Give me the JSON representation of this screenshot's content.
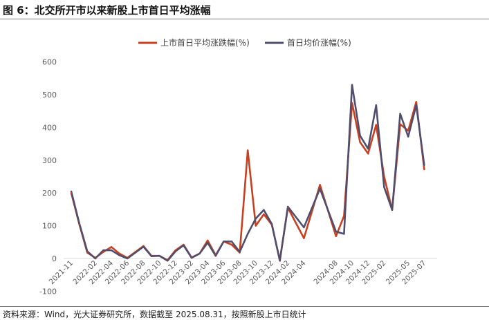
{
  "figure": {
    "title": "图 6：北交所开市以来新股上市首日平均涨幅",
    "source": "资料来源：Wind，光大证券研究所，数据截至 2025.08.31，按照新股上市日统计"
  },
  "colors": {
    "series1": "#c8401f",
    "series2": "#4f4e6e",
    "axis": "#d9d9d9"
  },
  "chart_data": {
    "type": "line",
    "title": "",
    "xlabel": "",
    "ylabel": "",
    "ylim": [
      -100,
      600
    ],
    "yticks": [
      -100,
      0,
      100,
      200,
      300,
      400,
      500,
      600
    ],
    "xticks": [
      "2021-11",
      "2022-02",
      "2022-04",
      "2022-06",
      "2022-08",
      "2022-10",
      "2022-12",
      "2023-02",
      "2023-04",
      "2023-06",
      "2023-08",
      "2023-10",
      "2023-12",
      "2024-02",
      "2024-04",
      "2024-08",
      "2024-10",
      "2024-12",
      "2025-02",
      "2025-05",
      "2025-07"
    ],
    "legend_position": "top",
    "grid": false,
    "x": [
      "2021-11",
      "2021-12",
      "2022-01",
      "2022-02",
      "2022-03",
      "2022-04",
      "2022-05",
      "2022-06",
      "2022-07",
      "2022-08",
      "2022-09",
      "2022-10",
      "2022-11",
      "2022-12",
      "2023-01",
      "2023-02",
      "2023-03",
      "2023-04",
      "2023-05",
      "2023-06",
      "2023-07",
      "2023-08",
      "2023-09",
      "2023-10",
      "2023-11",
      "2023-12",
      "2024-01",
      "2024-02",
      "2024-04",
      "2024-06",
      "2024-08",
      "2024-09",
      "2024-10",
      "2024-11",
      "2024-12",
      "2025-01",
      "2025-02",
      "2025-03",
      "2025-04",
      "2025-05",
      "2025-06",
      "2025-07",
      "2025-08"
    ],
    "series": [
      {
        "name": "上市首日平均涨跌幅(%)",
        "values": [
          200,
          105,
          18,
          2,
          20,
          35,
          15,
          2,
          20,
          38,
          8,
          8,
          -5,
          25,
          42,
          3,
          15,
          55,
          10,
          52,
          42,
          18,
          330,
          100,
          135,
          103,
          -5,
          155,
          62,
          225,
          68,
          130,
          475,
          355,
          320,
          408,
          250,
          148,
          410,
          390,
          478,
          272,
          null
        ]
      },
      {
        "name": "首日均价涨幅(%)",
        "values": [
          205,
          108,
          22,
          0,
          25,
          25,
          10,
          0,
          18,
          36,
          7,
          8,
          -7,
          22,
          40,
          2,
          15,
          48,
          8,
          52,
          52,
          20,
          75,
          122,
          148,
          105,
          -7,
          158,
          95,
          213,
          82,
          75,
          530,
          375,
          335,
          468,
          218,
          148,
          442,
          372,
          468,
          285,
          null
        ]
      }
    ]
  }
}
